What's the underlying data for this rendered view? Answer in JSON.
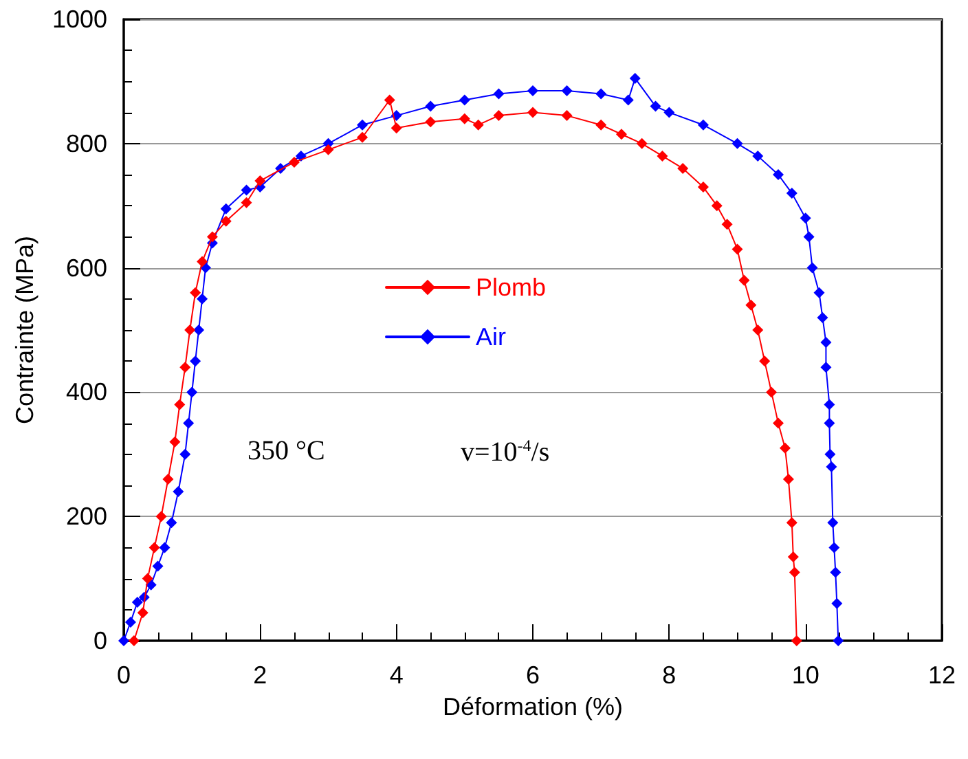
{
  "chart_data": {
    "type": "line",
    "xlabel": "Déformation (%)",
    "ylabel": "Contrainte (MPa)",
    "xlim": [
      0,
      12
    ],
    "xticks": [
      0,
      2,
      4,
      6,
      8,
      10,
      12
    ],
    "ylim": [
      0,
      1000
    ],
    "yticks": [
      0,
      200,
      400,
      600,
      800,
      1000
    ],
    "grid": "y",
    "legend": "left",
    "marker": "diamond",
    "line_style": "solid",
    "annotations": [
      "350 °C",
      "v=10$^{-4}$/s"
    ],
    "series": [
      {
        "name": "Plomb",
        "color": "#ff0000",
        "x": [
          0.15,
          0.28,
          0.35,
          0.45,
          0.55,
          0.65,
          0.75,
          0.82,
          0.9,
          0.97,
          1.05,
          1.15,
          1.3,
          1.5,
          1.8,
          2.0,
          2.5,
          3.0,
          3.5,
          3.9,
          4.0,
          4.5,
          5.0,
          5.2,
          5.5,
          6.0,
          6.5,
          7.0,
          7.3,
          7.6,
          7.9,
          8.2,
          8.5,
          8.7,
          8.85,
          9.0,
          9.1,
          9.2,
          9.3,
          9.4,
          9.5,
          9.6,
          9.7,
          9.75,
          9.8,
          9.82,
          9.84,
          9.87
        ],
        "values": [
          0,
          45,
          100,
          150,
          200,
          260,
          320,
          380,
          440,
          500,
          560,
          610,
          650,
          675,
          705,
          740,
          770,
          790,
          810,
          870,
          825,
          835,
          840,
          830,
          845,
          850,
          845,
          830,
          815,
          800,
          780,
          760,
          730,
          700,
          670,
          630,
          580,
          540,
          500,
          450,
          400,
          350,
          310,
          260,
          190,
          135,
          110,
          0
        ]
      },
      {
        "name": "Air",
        "color": "#0000ff",
        "x": [
          0.0,
          0.1,
          0.2,
          0.3,
          0.4,
          0.5,
          0.6,
          0.7,
          0.8,
          0.9,
          0.95,
          1.0,
          1.05,
          1.1,
          1.15,
          1.2,
          1.3,
          1.5,
          1.8,
          2.0,
          2.3,
          2.6,
          3.0,
          3.5,
          4.0,
          4.5,
          5.0,
          5.5,
          6.0,
          6.5,
          7.0,
          7.4,
          7.5,
          7.8,
          8.0,
          8.5,
          9.0,
          9.3,
          9.6,
          9.8,
          10.0,
          10.05,
          10.1,
          10.2,
          10.25,
          10.3,
          10.3,
          10.35,
          10.35,
          10.36,
          10.38,
          10.4,
          10.42,
          10.44,
          10.46,
          10.48
        ],
        "values": [
          0,
          30,
          62,
          70,
          90,
          120,
          150,
          190,
          240,
          300,
          350,
          400,
          450,
          500,
          550,
          600,
          640,
          695,
          725,
          730,
          760,
          780,
          800,
          830,
          845,
          860,
          870,
          880,
          885,
          885,
          880,
          870,
          905,
          860,
          850,
          830,
          800,
          780,
          750,
          720,
          680,
          650,
          600,
          560,
          520,
          480,
          440,
          380,
          350,
          300,
          280,
          190,
          150,
          110,
          60,
          0
        ]
      }
    ]
  }
}
